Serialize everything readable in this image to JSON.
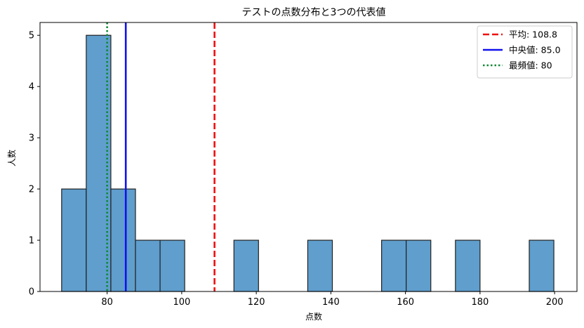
{
  "chart_data": {
    "type": "bar",
    "title": "テストの点数分布と3つの代表値",
    "xlabel": "点数",
    "ylabel": "人数",
    "xlim": [
      62,
      206
    ],
    "ylim": [
      0,
      5.25
    ],
    "xticks": [
      80,
      100,
      120,
      140,
      160,
      180,
      200
    ],
    "yticks": [
      0,
      1,
      2,
      3,
      4,
      5
    ],
    "bar_color": "#5f9ecd",
    "bar_edge_color": "#222222",
    "bins": [
      {
        "x0": 67.8,
        "x1": 74.4,
        "count": 2
      },
      {
        "x0": 74.4,
        "x1": 81.0,
        "count": 5
      },
      {
        "x0": 81.0,
        "x1": 87.6,
        "count": 2
      },
      {
        "x0": 87.6,
        "x1": 94.2,
        "count": 1
      },
      {
        "x0": 94.2,
        "x1": 100.8,
        "count": 1
      },
      {
        "x0": 100.8,
        "x1": 107.4,
        "count": 0
      },
      {
        "x0": 107.4,
        "x1": 114.0,
        "count": 0
      },
      {
        "x0": 114.0,
        "x1": 120.6,
        "count": 1
      },
      {
        "x0": 120.6,
        "x1": 127.2,
        "count": 0
      },
      {
        "x0": 127.2,
        "x1": 133.8,
        "count": 0
      },
      {
        "x0": 133.8,
        "x1": 140.4,
        "count": 1
      },
      {
        "x0": 140.4,
        "x1": 147.0,
        "count": 0
      },
      {
        "x0": 147.0,
        "x1": 153.6,
        "count": 0
      },
      {
        "x0": 153.6,
        "x1": 160.2,
        "count": 1
      },
      {
        "x0": 160.2,
        "x1": 166.8,
        "count": 1
      },
      {
        "x0": 166.8,
        "x1": 173.4,
        "count": 0
      },
      {
        "x0": 173.4,
        "x1": 180.0,
        "count": 1
      },
      {
        "x0": 180.0,
        "x1": 186.6,
        "count": 0
      },
      {
        "x0": 186.6,
        "x1": 193.2,
        "count": 0
      },
      {
        "x0": 193.2,
        "x1": 199.8,
        "count": 1
      }
    ],
    "reference_lines": [
      {
        "label": "平均: 108.8",
        "x": 108.8,
        "color": "#ee1111",
        "style": "dashed"
      },
      {
        "label": "中央値: 85.0",
        "x": 85.0,
        "color": "#1111ee",
        "style": "solid"
      },
      {
        "label": "最頻値: 80",
        "x": 80,
        "color": "#118833",
        "style": "dotted"
      }
    ],
    "legend_position": "top-right",
    "grid": false
  }
}
